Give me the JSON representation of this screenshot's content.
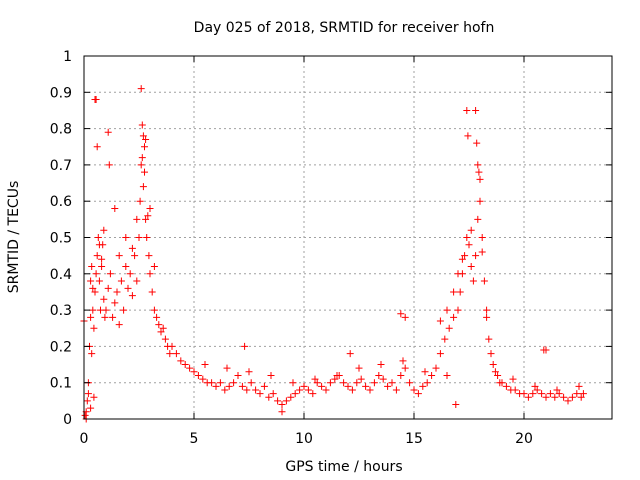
{
  "chart_data": {
    "type": "scatter",
    "title": "Day 025 of 2018, SRMTID for receiver hofn",
    "xlabel": "GPS time / hours",
    "ylabel": "SRMTID / TECUs",
    "xlim": [
      0,
      24
    ],
    "ylim": [
      0,
      1
    ],
    "xticks": [
      0,
      5,
      10,
      15,
      20
    ],
    "yticks": [
      0,
      0.1,
      0.2,
      0.3,
      0.4,
      0.5,
      0.6,
      0.7,
      0.8,
      0.9,
      1
    ],
    "ytick_labels": [
      "0",
      "0.1",
      "0.2",
      "0.3",
      "0.4",
      "0.5",
      "0.6",
      "0.7",
      "0.8",
      "0.9",
      "1"
    ],
    "grid": true,
    "marker": "+",
    "series": [
      {
        "name": "SRMTID",
        "color": "#ff0000",
        "x": [
          0.0,
          0.1,
          0.15,
          0.2,
          0.25,
          0.3,
          0.35,
          0.4,
          0.45,
          0.5,
          0.55,
          0.6,
          0.65,
          0.7,
          0.75,
          0.8,
          0.85,
          0.9,
          0.95,
          1.0,
          1.1,
          1.2,
          1.3,
          1.4,
          1.5,
          1.6,
          1.7,
          1.8,
          1.9,
          2.0,
          2.1,
          2.2,
          2.3,
          2.4,
          2.5,
          2.55,
          2.6,
          2.65,
          2.7,
          2.75,
          2.8,
          2.85,
          2.9,
          2.95,
          3.0,
          3.1,
          3.2,
          3.3,
          3.4,
          3.5,
          3.6,
          3.7,
          3.8,
          3.9,
          4.0,
          4.2,
          4.4,
          4.6,
          4.8,
          5.0,
          5.2,
          5.4,
          5.6,
          5.8,
          6.0,
          6.2,
          6.4,
          6.6,
          6.8,
          7.0,
          7.2,
          7.4,
          7.6,
          7.8,
          8.0,
          8.2,
          8.4,
          8.6,
          8.8,
          9.0,
          9.2,
          9.4,
          9.6,
          9.8,
          10.0,
          10.2,
          10.4,
          10.6,
          10.8,
          11.0,
          11.2,
          11.4,
          11.6,
          11.8,
          12.0,
          12.2,
          12.4,
          12.6,
          12.8,
          13.0,
          13.2,
          13.4,
          13.6,
          13.8,
          14.0,
          14.2,
          14.4,
          14.6,
          14.8,
          15.0,
          15.2,
          15.4,
          15.6,
          15.8,
          16.0,
          16.2,
          16.4,
          16.6,
          16.8,
          17.0,
          17.1,
          17.2,
          17.3,
          17.4,
          17.5,
          17.6,
          17.7,
          17.8,
          17.9,
          18.0,
          18.1,
          18.2,
          18.3,
          18.4,
          18.5,
          18.6,
          18.7,
          18.8,
          18.9,
          19.0,
          19.2,
          19.4,
          19.6,
          19.8,
          20.0,
          20.2,
          20.4,
          20.6,
          20.8,
          21.0,
          21.2,
          21.4,
          21.6,
          21.8,
          22.0,
          22.2,
          22.4,
          22.6,
          22.7,
          0.5,
          0.55,
          0.6,
          1.1,
          1.15,
          1.4,
          2.6,
          2.65,
          2.7,
          2.75,
          2.8,
          17.4,
          17.45,
          17.8,
          17.85,
          17.9,
          17.95,
          18.0,
          0.3,
          0.35,
          0.4,
          0.7,
          0.8,
          0.9,
          1.6,
          1.9,
          2.2,
          2.4,
          3.0,
          3.2,
          16.8,
          17.0,
          17.2,
          17.6,
          18.1,
          18.3,
          0.05,
          0.1,
          0.2,
          0.3,
          0.45,
          5.5,
          6.5,
          7.5,
          8.5,
          9.5,
          10.5,
          11.5,
          12.5,
          13.5,
          14.5,
          15.5,
          16.5,
          19.5,
          20.5,
          21.5,
          22.5,
          7.3,
          9.0,
          12.1,
          14.4,
          14.6,
          16.9,
          20.9,
          21.0,
          16.2,
          16.5
        ],
        "y": [
          0.27,
          0.02,
          0.05,
          0.1,
          0.2,
          0.28,
          0.18,
          0.3,
          0.25,
          0.35,
          0.4,
          0.45,
          0.5,
          0.38,
          0.3,
          0.42,
          0.48,
          0.33,
          0.28,
          0.3,
          0.36,
          0.4,
          0.28,
          0.32,
          0.35,
          0.26,
          0.38,
          0.3,
          0.42,
          0.36,
          0.4,
          0.34,
          0.45,
          0.38,
          0.5,
          0.6,
          0.7,
          0.72,
          0.64,
          0.68,
          0.55,
          0.5,
          0.56,
          0.45,
          0.4,
          0.35,
          0.3,
          0.28,
          0.26,
          0.24,
          0.25,
          0.22,
          0.2,
          0.18,
          0.2,
          0.18,
          0.16,
          0.15,
          0.14,
          0.13,
          0.12,
          0.11,
          0.1,
          0.1,
          0.09,
          0.1,
          0.08,
          0.09,
          0.1,
          0.12,
          0.09,
          0.08,
          0.1,
          0.08,
          0.07,
          0.09,
          0.06,
          0.07,
          0.05,
          0.04,
          0.05,
          0.06,
          0.07,
          0.08,
          0.09,
          0.08,
          0.07,
          0.1,
          0.09,
          0.08,
          0.1,
          0.11,
          0.12,
          0.1,
          0.09,
          0.08,
          0.1,
          0.11,
          0.09,
          0.08,
          0.1,
          0.12,
          0.11,
          0.09,
          0.1,
          0.08,
          0.12,
          0.14,
          0.1,
          0.08,
          0.07,
          0.09,
          0.1,
          0.12,
          0.14,
          0.18,
          0.22,
          0.25,
          0.28,
          0.3,
          0.35,
          0.4,
          0.45,
          0.5,
          0.48,
          0.42,
          0.38,
          0.45,
          0.55,
          0.6,
          0.5,
          0.38,
          0.28,
          0.22,
          0.18,
          0.15,
          0.13,
          0.12,
          0.1,
          0.1,
          0.09,
          0.08,
          0.08,
          0.07,
          0.07,
          0.06,
          0.07,
          0.08,
          0.07,
          0.06,
          0.07,
          0.06,
          0.07,
          0.06,
          0.05,
          0.06,
          0.07,
          0.06,
          0.07,
          0.88,
          0.88,
          0.75,
          0.79,
          0.7,
          0.58,
          0.91,
          0.81,
          0.78,
          0.75,
          0.77,
          0.85,
          0.78,
          0.85,
          0.76,
          0.7,
          0.68,
          0.66,
          0.38,
          0.42,
          0.36,
          0.48,
          0.44,
          0.52,
          0.45,
          0.5,
          0.47,
          0.55,
          0.58,
          0.42,
          0.35,
          0.4,
          0.44,
          0.52,
          0.46,
          0.3,
          0.01,
          0.0,
          0.07,
          0.03,
          0.06,
          0.15,
          0.14,
          0.13,
          0.12,
          0.1,
          0.11,
          0.12,
          0.14,
          0.15,
          0.16,
          0.13,
          0.12,
          0.11,
          0.09,
          0.08,
          0.09,
          0.2,
          0.02,
          0.18,
          0.29,
          0.28,
          0.04,
          0.19,
          0.19,
          0.27,
          0.3
        ]
      }
    ]
  }
}
